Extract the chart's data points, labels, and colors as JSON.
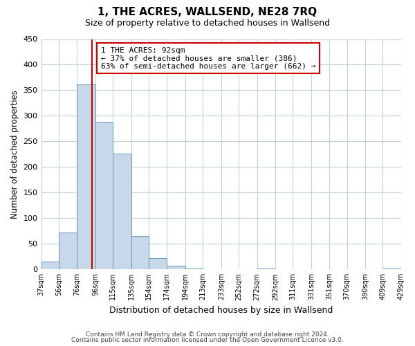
{
  "title": "1, THE ACRES, WALLSEND, NE28 7RQ",
  "subtitle": "Size of property relative to detached houses in Wallsend",
  "xlabel": "Distribution of detached houses by size in Wallsend",
  "ylabel": "Number of detached properties",
  "footnote1": "Contains HM Land Registry data © Crown copyright and database right 2024.",
  "footnote2": "Contains public sector information licensed under the Open Government Licence v3.0.",
  "bar_edges": [
    37,
    56,
    76,
    96,
    115,
    135,
    154,
    174,
    194,
    213,
    233,
    252,
    272,
    292,
    311,
    331,
    351,
    370,
    390,
    409,
    429
  ],
  "bar_heights": [
    15,
    72,
    362,
    288,
    226,
    65,
    22,
    7,
    2,
    0,
    0,
    0,
    2,
    0,
    0,
    0,
    0,
    0,
    0,
    2
  ],
  "bar_color": "#c8d8e8",
  "bar_edge_color": "#6699bb",
  "property_value": 92,
  "vline_color": "#cc0000",
  "annotation_text": "1 THE ACRES: 92sqm\n← 37% of detached houses are smaller (386)\n63% of semi-detached houses are larger (662) →",
  "annotation_box_edge": "#cc0000",
  "ylim": [
    0,
    450
  ],
  "yticks": [
    0,
    50,
    100,
    150,
    200,
    250,
    300,
    350,
    400,
    450
  ]
}
